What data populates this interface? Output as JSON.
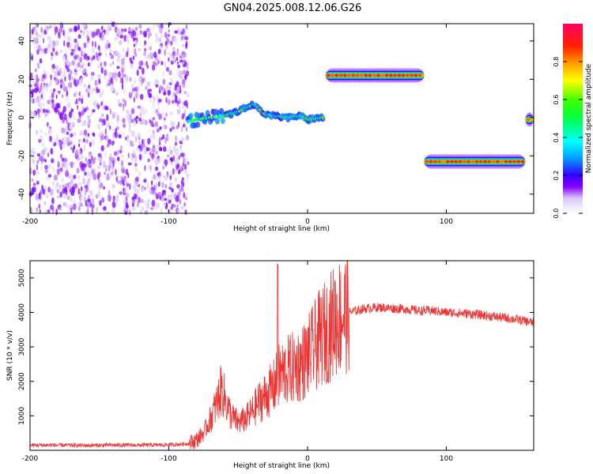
{
  "title": "GN04.2025.008.12.06.G26",
  "chart_data": [
    {
      "type": "heatmap",
      "xlabel": "Height of straight line (km)",
      "ylabel": "Frequency (Hz)",
      "xlim": [
        -200,
        163
      ],
      "ylim": [
        -50,
        49
      ],
      "xticks": [
        -200,
        -100,
        0,
        100
      ],
      "yticks": [
        -40,
        -20,
        0,
        20,
        40
      ],
      "colorbar": {
        "label": "Normalized spectral amplitude",
        "range": [
          0,
          1
        ],
        "ticks": [
          0.0,
          0.2,
          0.4,
          0.6,
          0.8
        ]
      },
      "features": [
        {
          "kind": "noise_field",
          "x_range": [
            -200,
            -86
          ],
          "y_range": [
            -50,
            49
          ],
          "amplitude": 0.12
        },
        {
          "kind": "ridge",
          "points": [
            [
              -86,
              -2
            ],
            [
              -80,
              -1
            ],
            [
              -70,
              0
            ],
            [
              -60,
              1
            ],
            [
              -50,
              3
            ],
            [
              -45,
              5
            ],
            [
              -38,
              7
            ],
            [
              -32,
              2
            ],
            [
              -25,
              1
            ],
            [
              -15,
              0
            ],
            [
              -5,
              1
            ],
            [
              0,
              -1
            ],
            [
              12,
              0
            ]
          ],
          "amplitude": 0.55
        },
        {
          "kind": "band",
          "x_range": [
            13,
            84
          ],
          "freq": 22,
          "amplitude": 0.95
        },
        {
          "kind": "band",
          "x_range": [
            84,
            157
          ],
          "freq": -23,
          "amplitude": 0.95
        },
        {
          "kind": "band",
          "x_range": [
            157,
            163
          ],
          "freq": -1,
          "amplitude": 0.85
        }
      ]
    },
    {
      "type": "line",
      "xlabel": "Height of straight line (km)",
      "ylabel": "SNR (10 * v/v)",
      "xlim": [
        -200,
        163
      ],
      "ylim": [
        0,
        5500
      ],
      "xticks": [
        -200,
        -100,
        0,
        100
      ],
      "yticks": [
        1000,
        2000,
        3000,
        4000,
        5000
      ],
      "color": "#ee3333",
      "series": [
        {
          "x": [
            -200,
            -180,
            -160,
            -140,
            -120,
            -100,
            -90,
            -85,
            -80,
            -75,
            -70,
            -65,
            -62,
            -58,
            -55,
            -50,
            -45,
            -40,
            -35,
            -30,
            -25,
            -22,
            -20,
            -15,
            -10,
            -5,
            0,
            5,
            10,
            15,
            20,
            25,
            30,
            35,
            40,
            50,
            60,
            70,
            80,
            90,
            100,
            110,
            120,
            130,
            140,
            150,
            163
          ],
          "y": [
            150,
            150,
            140,
            150,
            150,
            160,
            180,
            200,
            300,
            500,
            900,
            1400,
            1800,
            1300,
            1000,
            800,
            900,
            1100,
            1400,
            1600,
            1800,
            2000,
            2200,
            2300,
            2400,
            2500,
            2700,
            3000,
            3300,
            3500,
            3800,
            3950,
            4000,
            4050,
            4100,
            4150,
            4120,
            4100,
            4050,
            4050,
            4000,
            3980,
            3950,
            3900,
            3850,
            3800,
            3700
          ]
        }
      ]
    }
  ]
}
